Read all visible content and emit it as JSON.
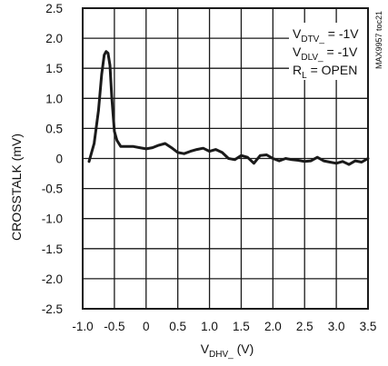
{
  "chart_data": {
    "type": "line",
    "title": "",
    "xlabel": {
      "main": "V",
      "sub": "DHV_",
      "unit": " (V)"
    },
    "ylabel": "CROSSTALK (mV)",
    "xlim": [
      -1.0,
      3.5
    ],
    "ylim": [
      -2.5,
      2.5
    ],
    "xticks": [
      -1.0,
      -0.5,
      0,
      0.5,
      1.0,
      1.5,
      2.0,
      2.5,
      3.0,
      3.5
    ],
    "xtick_labels": [
      "-1.0",
      "-0.5",
      "0",
      "0.5",
      "1.0",
      "1.5",
      "2.0",
      "2.5",
      "3.0",
      "3.5"
    ],
    "yticks": [
      2.5,
      2.0,
      1.5,
      1.0,
      0.5,
      0,
      -0.5,
      -1.0,
      -1.5,
      -2.0,
      -2.5
    ],
    "ytick_labels": [
      "2.5",
      "2.0",
      "1.5",
      "1.0",
      "0.5",
      "0",
      "-0.5",
      "-1.0",
      "-1.5",
      "-2.0",
      "-2.5"
    ],
    "grid": true,
    "series": [
      {
        "x": [
          -0.9,
          -0.82,
          -0.75,
          -0.7,
          -0.66,
          -0.63,
          -0.6,
          -0.57,
          -0.54,
          -0.5,
          -0.46,
          -0.4,
          -0.3,
          -0.2,
          -0.1,
          0.0,
          0.1,
          0.2,
          0.3,
          0.4,
          0.5,
          0.6,
          0.7,
          0.8,
          0.9,
          1.0,
          1.1,
          1.2,
          1.3,
          1.4,
          1.5,
          1.6,
          1.7,
          1.8,
          1.9,
          2.0,
          2.1,
          2.2,
          2.3,
          2.4,
          2.5,
          2.6,
          2.7,
          2.8,
          2.9,
          3.0,
          3.1,
          3.2,
          3.3,
          3.4,
          3.5
        ],
        "y": [
          -0.05,
          0.25,
          0.8,
          1.4,
          1.72,
          1.78,
          1.75,
          1.55,
          1.0,
          0.45,
          0.3,
          0.2,
          0.2,
          0.2,
          0.18,
          0.16,
          0.18,
          0.22,
          0.25,
          0.18,
          0.1,
          0.08,
          0.12,
          0.15,
          0.17,
          0.12,
          0.15,
          0.1,
          0.0,
          -0.02,
          0.05,
          0.02,
          -0.08,
          0.05,
          0.06,
          0.0,
          -0.04,
          0.0,
          -0.02,
          -0.03,
          -0.05,
          -0.04,
          0.02,
          -0.04,
          -0.06,
          -0.08,
          -0.05,
          -0.1,
          -0.04,
          -0.06,
          0.0
        ]
      }
    ],
    "legend": [
      {
        "main": "V",
        "sub": "DTV_",
        "rest": " = -1V"
      },
      {
        "main": "V",
        "sub": "DLV_",
        "rest": " = -1V"
      },
      {
        "main": "R",
        "sub": "L",
        "rest": " = OPEN"
      }
    ],
    "side_note": "MAX9957 toc21",
    "colors": {
      "line": "#1a1a1a",
      "grid": "#1a1a1a",
      "background": "#ffffff"
    }
  }
}
